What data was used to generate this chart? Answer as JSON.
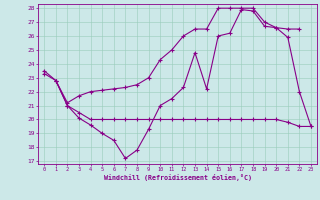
{
  "xlabel": "Windchill (Refroidissement éolien,°C)",
  "bg_color": "#cce8e8",
  "line_color": "#880088",
  "xlim": [
    -0.5,
    23.5
  ],
  "ylim": [
    16.8,
    28.3
  ],
  "yticks": [
    17,
    18,
    19,
    20,
    21,
    22,
    23,
    24,
    25,
    26,
    27,
    28
  ],
  "xticks": [
    0,
    1,
    2,
    3,
    4,
    5,
    6,
    7,
    8,
    9,
    10,
    11,
    12,
    13,
    14,
    15,
    16,
    17,
    18,
    19,
    20,
    21,
    22,
    23
  ],
  "line1_x": [
    0,
    1,
    2,
    3,
    4,
    5,
    6,
    7,
    8,
    9,
    10,
    11,
    12,
    13,
    14,
    15,
    16,
    17,
    18,
    19,
    20,
    21,
    22,
    23
  ],
  "line1_y": [
    23.5,
    22.8,
    21.0,
    20.1,
    19.6,
    19.0,
    18.5,
    17.2,
    17.8,
    19.3,
    21.0,
    21.5,
    22.3,
    24.8,
    22.2,
    26.0,
    26.2,
    27.9,
    27.8,
    26.7,
    26.6,
    25.9,
    22.0,
    19.5
  ],
  "line2_x": [
    0,
    1,
    2,
    3,
    4,
    5,
    6,
    7,
    8,
    9,
    10,
    11,
    12,
    13,
    14,
    15,
    16,
    17,
    18,
    19,
    20,
    21,
    22,
    23
  ],
  "line2_y": [
    23.3,
    22.8,
    21.0,
    20.5,
    20.0,
    20.0,
    20.0,
    20.0,
    20.0,
    20.0,
    20.0,
    20.0,
    20.0,
    20.0,
    20.0,
    20.0,
    20.0,
    20.0,
    20.0,
    20.0,
    20.0,
    19.8,
    19.5,
    19.5
  ],
  "line3_x": [
    1,
    2,
    3,
    4,
    5,
    6,
    7,
    8,
    9,
    10,
    11,
    12,
    13,
    14,
    15,
    16,
    17,
    18,
    19,
    20,
    21,
    22
  ],
  "line3_y": [
    22.8,
    21.2,
    21.7,
    22.0,
    22.1,
    22.2,
    22.3,
    22.5,
    23.0,
    24.3,
    25.0,
    26.0,
    26.5,
    26.5,
    28.0,
    28.0,
    28.0,
    28.0,
    27.0,
    26.6,
    26.5,
    26.5
  ]
}
